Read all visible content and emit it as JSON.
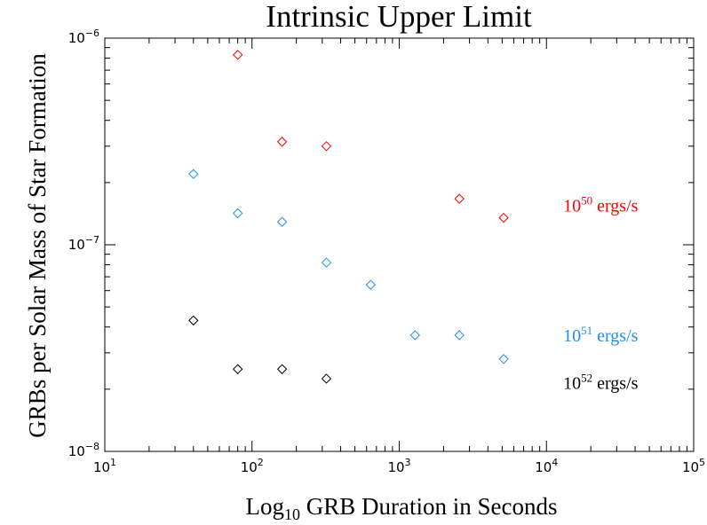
{
  "chart_data": {
    "type": "scatter",
    "title": "Intrinsic Upper Limit",
    "xlabel": {
      "prefix": "Log",
      "subscript": "10",
      "suffix": " GRB Duration in Seconds"
    },
    "ylabel": "GRBs per Solar Mass of Star Formation",
    "xscale": "log",
    "yscale": "log",
    "xlim": [
      10,
      100000
    ],
    "ylim": [
      1e-08,
      1e-06
    ],
    "grid": false,
    "marker": "diamond",
    "x_ticks": [
      {
        "value": 10,
        "base": "10",
        "exp": "1"
      },
      {
        "value": 100,
        "base": "10",
        "exp": "2"
      },
      {
        "value": 1000,
        "base": "10",
        "exp": "3"
      },
      {
        "value": 10000,
        "base": "10",
        "exp": "4"
      },
      {
        "value": 100000,
        "base": "10",
        "exp": "5"
      }
    ],
    "y_ticks": [
      {
        "value": 1e-08,
        "base": "10",
        "exp": "−8"
      },
      {
        "value": 1e-07,
        "base": "10",
        "exp": "−7"
      },
      {
        "value": 1e-06,
        "base": "10",
        "exp": "−6"
      }
    ],
    "series": [
      {
        "name": "",
        "color": "#ff0000",
        "points": [
          {
            "x": 80,
            "y": 8.3e-07
          },
          {
            "x": 160,
            "y": 3.15e-07
          },
          {
            "x": 320,
            "y": 3e-07
          },
          {
            "x": 2560,
            "y": 1.67e-07
          },
          {
            "x": 5120,
            "y": 1.35e-07
          }
        ]
      },
      {
        "name": "",
        "color": "#1f8ef1",
        "points": [
          {
            "x": 40,
            "y": 2.2e-07
          },
          {
            "x": 80,
            "y": 1.42e-07
          },
          {
            "x": 160,
            "y": 1.29e-07
          },
          {
            "x": 320,
            "y": 8.2e-08
          },
          {
            "x": 640,
            "y": 6.4e-08
          },
          {
            "x": 1280,
            "y": 3.65e-08
          },
          {
            "x": 2560,
            "y": 3.65e-08
          },
          {
            "x": 5120,
            "y": 2.8e-08
          }
        ]
      },
      {
        "name": "",
        "color": "#000000",
        "points": [
          {
            "x": 40,
            "y": 4.3e-08
          },
          {
            "x": 80,
            "y": 2.5e-08
          },
          {
            "x": 160,
            "y": 2.5e-08
          },
          {
            "x": 320,
            "y": 2.25e-08
          }
        ]
      }
    ],
    "annotations": [
      {
        "base": "10",
        "exp": "50",
        "text": " ergs/s",
        "color": "#ff0000",
        "x": 13000,
        "y": 1.55e-07
      },
      {
        "base": "10",
        "exp": "51",
        "text": " ergs/s",
        "color": "#1f8ef1",
        "x": 13000,
        "y": 3.65e-08
      },
      {
        "base": "10",
        "exp": "52",
        "text": " ergs/s",
        "color": "#000000",
        "x": 13000,
        "y": 2.15e-08
      }
    ]
  }
}
